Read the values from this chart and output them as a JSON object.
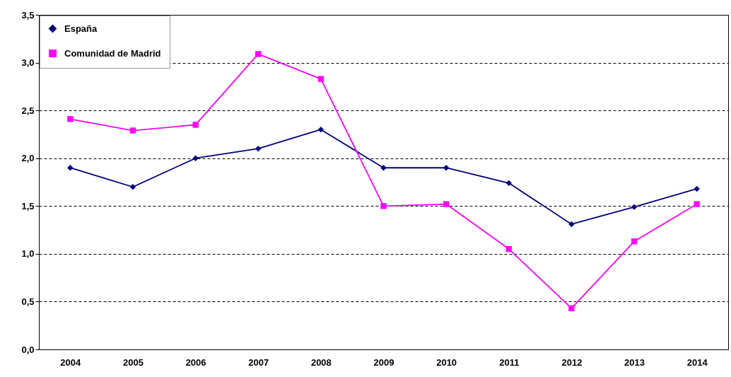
{
  "chart_data": {
    "type": "line",
    "categories": [
      "2004",
      "2005",
      "2006",
      "2007",
      "2008",
      "2009",
      "2010",
      "2011",
      "2012",
      "2013",
      "2014"
    ],
    "series": [
      {
        "name": "España",
        "color": "#000080",
        "marker": "diamond",
        "values": [
          1.9,
          1.7,
          2.0,
          2.1,
          2.3,
          1.9,
          1.9,
          1.74,
          1.31,
          1.49,
          1.68
        ]
      },
      {
        "name": "Comunidad de Madrid",
        "color": "#ff00ff",
        "marker": "square",
        "values": [
          2.41,
          2.29,
          2.35,
          3.09,
          2.83,
          1.5,
          1.52,
          1.05,
          0.43,
          1.13,
          1.52
        ]
      }
    ],
    "ylim": [
      0,
      3.5
    ],
    "yticks": [
      {
        "value": 0,
        "label": "0,0"
      },
      {
        "value": 0.5,
        "label": "0,5"
      },
      {
        "value": 1,
        "label": "1,0"
      },
      {
        "value": 1.5,
        "label": "1,5"
      },
      {
        "value": 2,
        "label": "2,0"
      },
      {
        "value": 2.5,
        "label": "2,5"
      },
      {
        "value": 3,
        "label": "3,0"
      },
      {
        "value": 3.5,
        "label": "3,5"
      }
    ],
    "grid": "y",
    "line_style": "solid",
    "legend": "top left"
  }
}
